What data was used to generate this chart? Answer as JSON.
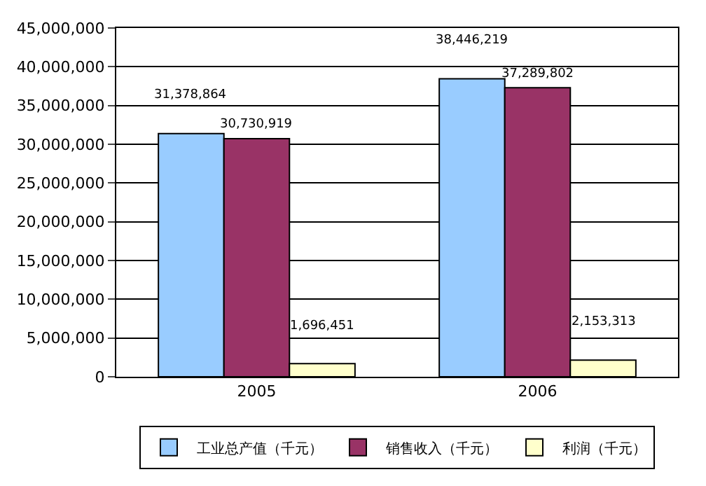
{
  "chart_data": {
    "type": "bar",
    "categories": [
      "2005",
      "2006"
    ],
    "series": [
      {
        "name": "工业总产值（千元）",
        "color": "#99ccff",
        "values": [
          31378864,
          38446219
        ],
        "value_labels": [
          "31,378,864",
          "38,446,219"
        ]
      },
      {
        "name": "销售收入（千元）",
        "color": "#993366",
        "values": [
          30730919,
          37289802
        ],
        "value_labels": [
          "30,730,919",
          "37,289,802"
        ]
      },
      {
        "name": "利润（千元）",
        "color": "#ffffcc",
        "values": [
          1696451,
          2153313
        ],
        "value_labels": [
          "1,696,451",
          "2,153,313"
        ]
      }
    ],
    "ylim": [
      0,
      45000000
    ],
    "yticks": [
      0,
      {
        "value": 5000000,
        "label": "5,000,000"
      },
      {
        "value": 10000000,
        "label": "10,000,000"
      },
      {
        "value": 15000000,
        "label": "15,000,000"
      },
      {
        "value": 20000000,
        "label": "20,000,000"
      },
      {
        "value": 25000000,
        "label": "25,000,000"
      },
      {
        "value": 30000000,
        "label": "30,000,000"
      },
      {
        "value": 35000000,
        "label": "35,000,000"
      },
      {
        "value": 40000000,
        "label": "40,000,000"
      },
      {
        "value": 45000000,
        "label": "45,000,000"
      }
    ],
    "grid": "y",
    "legend": "bottom"
  }
}
